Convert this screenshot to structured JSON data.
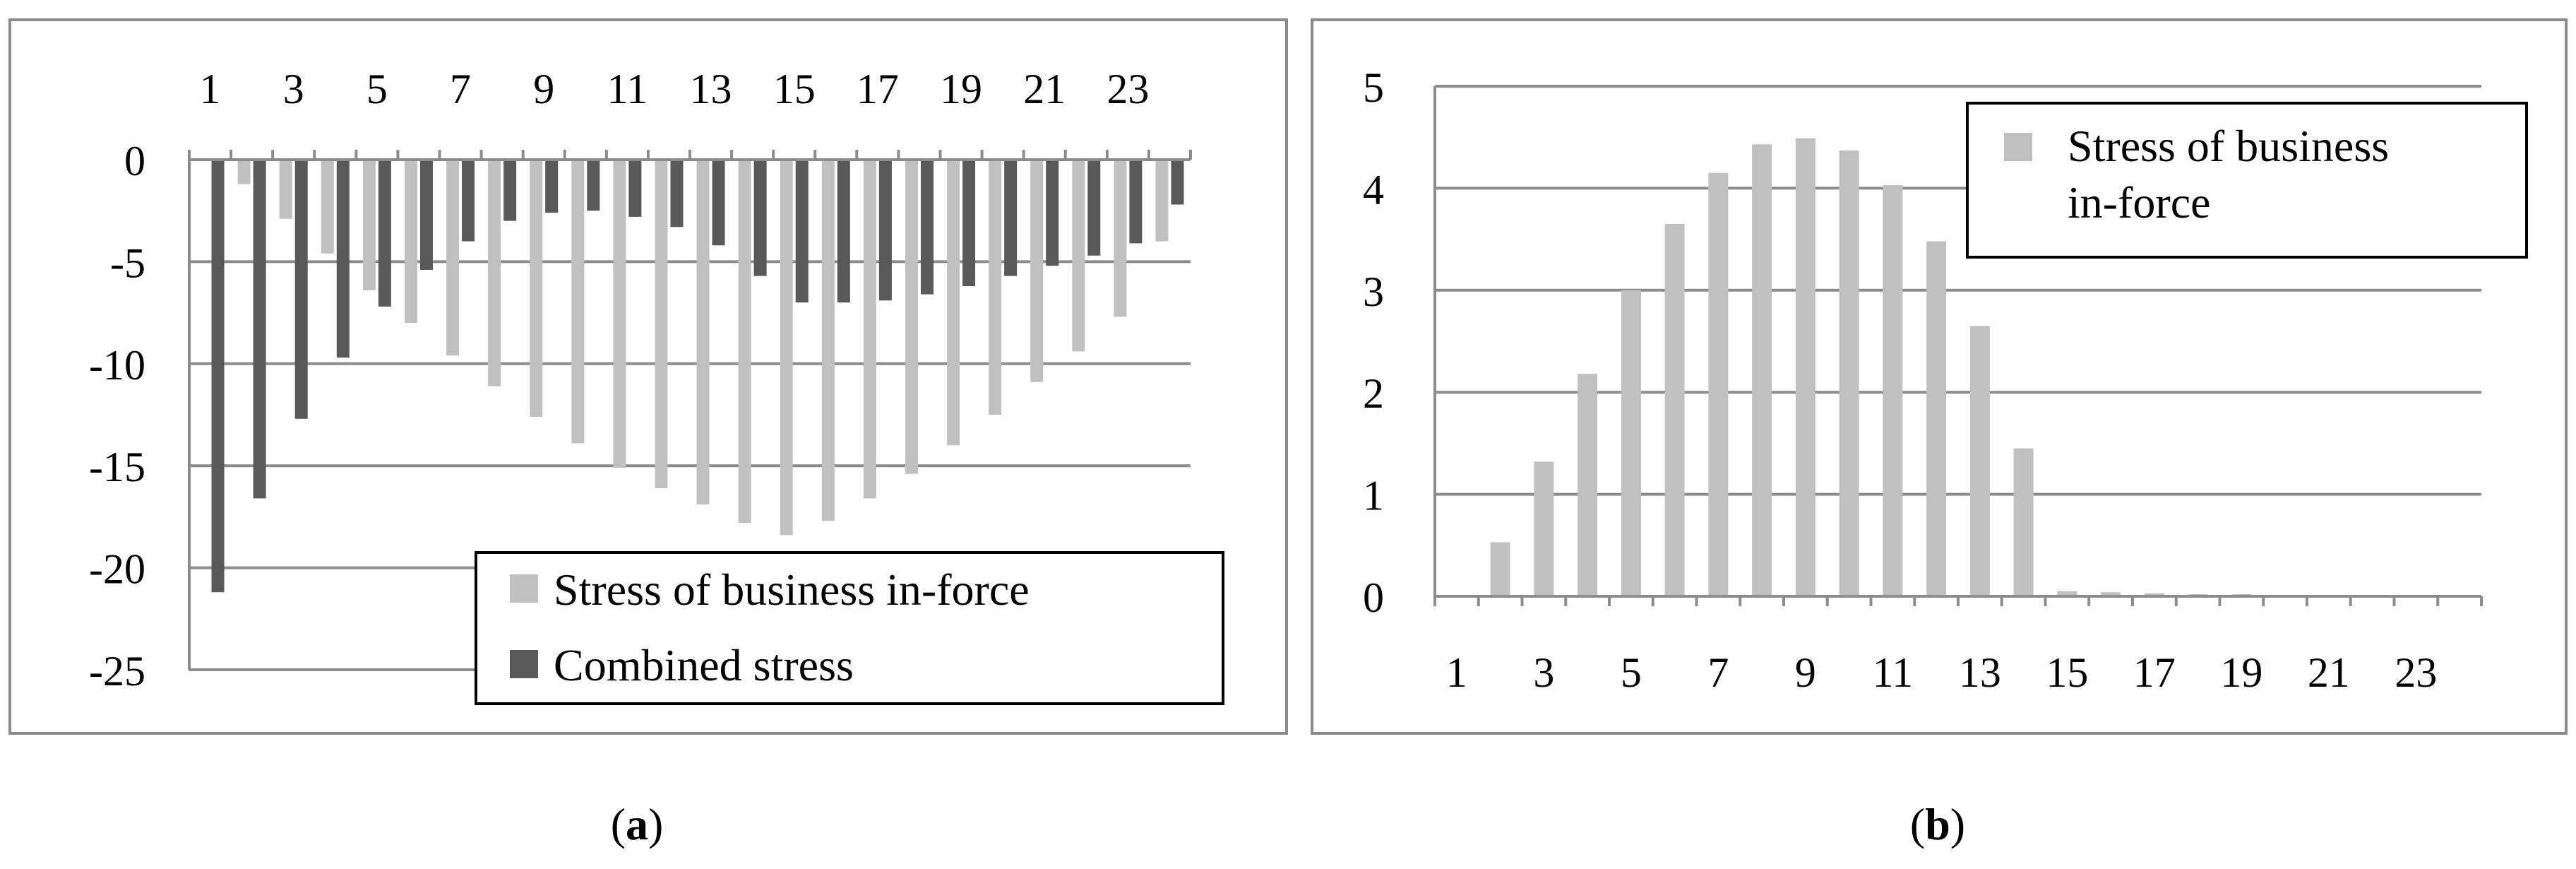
{
  "figure": {
    "caption_a_letter": "a",
    "caption_b_letter": "b",
    "paren_open": "(",
    "paren_close": ")"
  },
  "colors": {
    "light_series": "#c0c0c0",
    "dark_series": "#595959",
    "gridline": "#8c8c8c",
    "frame": "#8c8c8c",
    "legend_border": "#000000"
  },
  "chart_data": [
    {
      "panel": "a",
      "type": "bar",
      "categories": [
        "1",
        "2",
        "3",
        "4",
        "5",
        "6",
        "7",
        "8",
        "9",
        "10",
        "11",
        "12",
        "13",
        "14",
        "15",
        "16",
        "17",
        "18",
        "19",
        "20",
        "21",
        "22",
        "23",
        "24"
      ],
      "x_tick_labels": [
        "1",
        "3",
        "5",
        "7",
        "9",
        "11",
        "13",
        "15",
        "17",
        "19",
        "21",
        "23"
      ],
      "y_tick_labels": [
        "0",
        "-5",
        "-10",
        "-15",
        "-20",
        "-25"
      ],
      "ylim": [
        -25,
        0
      ],
      "y_ticks": [
        0,
        -5,
        -10,
        -15,
        -20,
        -25
      ],
      "grid": true,
      "x_axis_position": "top",
      "legend_position": "bottom-right",
      "series": [
        {
          "name": "Stress of business in-force",
          "color": "#c0c0c0",
          "values": [
            0,
            -1.2,
            -2.9,
            -4.6,
            -6.4,
            -8.0,
            -9.6,
            -11.1,
            -12.6,
            -13.9,
            -15.1,
            -16.1,
            -16.9,
            -17.8,
            -18.4,
            -17.7,
            -16.6,
            -15.4,
            -14.0,
            -12.5,
            -10.9,
            -9.4,
            -7.7,
            -4.0
          ]
        },
        {
          "name": "Combined stress",
          "color": "#595959",
          "values": [
            -21.2,
            -16.6,
            -12.7,
            -9.7,
            -7.2,
            -5.4,
            -4.0,
            -3.0,
            -2.6,
            -2.5,
            -2.8,
            -3.3,
            -4.2,
            -5.7,
            -7.0,
            -7.0,
            -6.9,
            -6.6,
            -6.2,
            -5.7,
            -5.2,
            -4.7,
            -4.1,
            -2.2
          ]
        }
      ]
    },
    {
      "panel": "b",
      "type": "bar",
      "categories": [
        "1",
        "2",
        "3",
        "4",
        "5",
        "6",
        "7",
        "8",
        "9",
        "10",
        "11",
        "12",
        "13",
        "14",
        "15",
        "16",
        "17",
        "18",
        "19",
        "20",
        "21",
        "22",
        "23",
        "24"
      ],
      "x_tick_labels": [
        "1",
        "3",
        "5",
        "7",
        "9",
        "11",
        "13",
        "15",
        "17",
        "19",
        "21",
        "23"
      ],
      "y_tick_labels": [
        "0",
        "1",
        "2",
        "3",
        "4",
        "5"
      ],
      "ylim": [
        0,
        5
      ],
      "y_ticks": [
        0,
        1,
        2,
        3,
        4,
        5
      ],
      "grid": true,
      "x_axis_position": "bottom",
      "legend_position": "top-right",
      "series": [
        {
          "name": "Stress of business in-force",
          "color": "#c0c0c0",
          "values": [
            0,
            0.53,
            1.32,
            2.18,
            3.0,
            3.65,
            4.15,
            4.43,
            4.49,
            4.37,
            4.03,
            3.48,
            2.65,
            1.45,
            0.05,
            0.04,
            0.03,
            0.02,
            0.02,
            0.01,
            0.01,
            0.01,
            0.01,
            0.01
          ]
        }
      ]
    }
  ]
}
